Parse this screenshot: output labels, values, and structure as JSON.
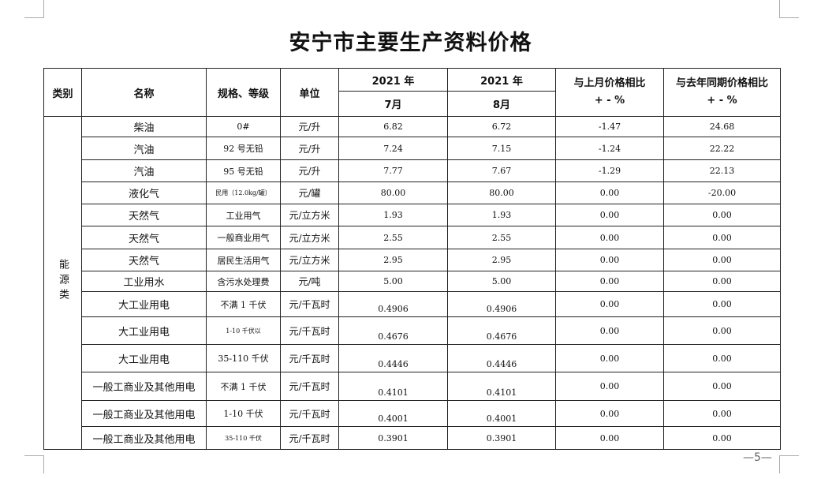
{
  "title": "安宁市主要生产资料价格",
  "header": {
    "category": "类别",
    "name": "名称",
    "spec": "规格、等级",
    "unit": "单位",
    "year_a": "2021 年",
    "month_a": "7月",
    "year_b": "2021 年",
    "month_b": "8月",
    "mom_line1": "与上月价格相比",
    "mom_line2": "+ - %",
    "yoy_line1": "与去年同期价格相比",
    "yoy_line2": "+ - %"
  },
  "category_label": "能源类",
  "rows": [
    {
      "name": "柴油",
      "spec": "0#",
      "unit": "元/升",
      "jul": "6.82",
      "aug": "6.72",
      "mom": "-1.47",
      "yoy": "24.68"
    },
    {
      "name": "汽油",
      "spec": "92 号无铅",
      "unit": "元/升",
      "jul": "7.24",
      "aug": "7.15",
      "mom": "-1.24",
      "yoy": "22.22"
    },
    {
      "name": "汽油",
      "spec": "95 号无铅",
      "unit": "元/升",
      "jul": "7.77",
      "aug": "7.67",
      "mom": "-1.29",
      "yoy": "22.13"
    },
    {
      "name": "液化气",
      "spec": "民用（12.0kg/罐）",
      "unit": "元/罐",
      "jul": "80.00",
      "aug": "80.00",
      "mom": "0.00",
      "yoy": "-20.00"
    },
    {
      "name": "天然气",
      "spec": "工业用气",
      "unit": "元/立方米",
      "jul": "1.93",
      "aug": "1.93",
      "mom": "0.00",
      "yoy": "0.00"
    },
    {
      "name": "天然气",
      "spec": "一般商业用气",
      "unit": "元/立方米",
      "jul": "2.55",
      "aug": "2.55",
      "mom": "0.00",
      "yoy": "0.00"
    },
    {
      "name": "天然气",
      "spec": "居民生活用气",
      "unit": "元/立方米",
      "jul": "2.95",
      "aug": "2.95",
      "mom": "0.00",
      "yoy": "0.00"
    },
    {
      "name": "工业用水",
      "spec": "含污水处理费",
      "unit": "元/吨",
      "jul": "5.00",
      "aug": "5.00",
      "mom": "0.00",
      "yoy": "0.00"
    },
    {
      "name": "大工业用电",
      "spec": "不满 1 千伏",
      "unit": "元/千瓦时",
      "jul": "0.4906",
      "aug": "0.4906",
      "mom": "0.00",
      "yoy": "0.00"
    },
    {
      "name": "大工业用电",
      "spec": "1-10 千伏以",
      "unit": "元/千瓦时",
      "jul": "0.4676",
      "aug": "0.4676",
      "mom": "0.00",
      "yoy": "0.00"
    },
    {
      "name": "大工业用电",
      "spec": "35-110 千伏",
      "unit": "元/千瓦时",
      "jul": "0.4446",
      "aug": "0.4446",
      "mom": "0.00",
      "yoy": "0.00"
    },
    {
      "name": "一般工商业及其他用电",
      "spec": "不满 1 千伏",
      "unit": "元/千瓦时",
      "jul": "0.4101",
      "aug": "0.4101",
      "mom": "0.00",
      "yoy": "0.00"
    },
    {
      "name": "一般工商业及其他用电",
      "spec": "1-10 千伏",
      "unit": "元/千瓦时",
      "jul": "0.4001",
      "aug": "0.4001",
      "mom": "0.00",
      "yoy": "0.00"
    },
    {
      "name": "一般工商业及其他用电",
      "spec": "35-110 千伏",
      "unit": "元/千瓦时",
      "jul": "0.3901",
      "aug": "0.3901",
      "mom": "0.00",
      "yoy": "0.00"
    }
  ],
  "page_number": "—5—"
}
